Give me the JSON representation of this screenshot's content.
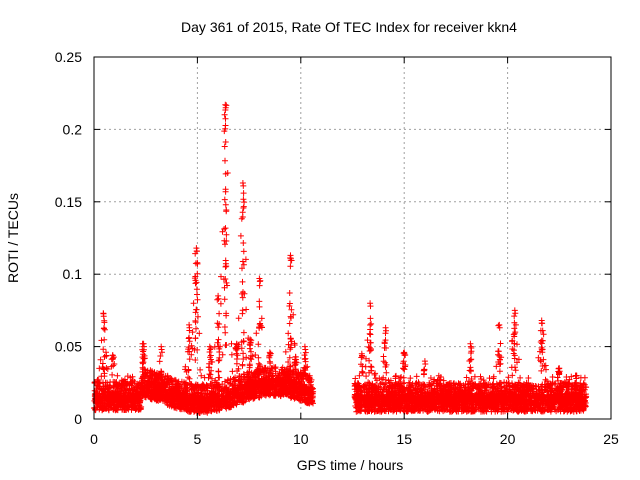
{
  "chart_data": {
    "type": "scatter",
    "title": "Day 361 of 2015, Rate Of TEC Index for receiver kkn4",
    "xlabel": "GPS time / hours",
    "ylabel": "ROTI / TECUs",
    "xlim": [
      0,
      25
    ],
    "ylim": [
      0,
      0.25
    ],
    "xticks": [
      0,
      5,
      10,
      15,
      20,
      25
    ],
    "xtick_labels": [
      "0",
      "5",
      "10",
      "15",
      "20",
      "25"
    ],
    "yticks": [
      0,
      0.05,
      0.1,
      0.15,
      0.2,
      0.25
    ],
    "ytick_labels": [
      "0",
      "0.05",
      "0.1",
      "0.15",
      "0.2",
      "0.25"
    ],
    "grid": true,
    "marker": "+",
    "series": [
      {
        "name": "ROTI",
        "color": "#ff0000",
        "data_gap_hours": [
          10.6,
          12.6
        ],
        "segments": [
          {
            "x_start": 0.0,
            "x_end": 10.6
          },
          {
            "x_start": 12.6,
            "x_end": 23.8
          }
        ],
        "peaks": [
          {
            "x": 0.45,
            "y": 0.073
          },
          {
            "x": 0.9,
            "y": 0.044
          },
          {
            "x": 2.4,
            "y": 0.052
          },
          {
            "x": 3.25,
            "y": 0.05
          },
          {
            "x": 4.6,
            "y": 0.065
          },
          {
            "x": 4.95,
            "y": 0.118
          },
          {
            "x": 5.6,
            "y": 0.05
          },
          {
            "x": 6.0,
            "y": 0.085
          },
          {
            "x": 6.35,
            "y": 0.217
          },
          {
            "x": 6.9,
            "y": 0.052
          },
          {
            "x": 7.2,
            "y": 0.163
          },
          {
            "x": 7.55,
            "y": 0.055
          },
          {
            "x": 8.0,
            "y": 0.097
          },
          {
            "x": 8.5,
            "y": 0.046
          },
          {
            "x": 9.5,
            "y": 0.113
          },
          {
            "x": 9.75,
            "y": 0.043
          },
          {
            "x": 10.2,
            "y": 0.05
          },
          {
            "x": 12.95,
            "y": 0.045
          },
          {
            "x": 13.35,
            "y": 0.08
          },
          {
            "x": 14.1,
            "y": 0.063
          },
          {
            "x": 15.0,
            "y": 0.046
          },
          {
            "x": 16.0,
            "y": 0.04
          },
          {
            "x": 18.2,
            "y": 0.052
          },
          {
            "x": 19.6,
            "y": 0.065
          },
          {
            "x": 20.35,
            "y": 0.075
          },
          {
            "x": 21.65,
            "y": 0.068
          },
          {
            "x": 22.5,
            "y": 0.035
          },
          {
            "x": 23.3,
            "y": 0.03
          }
        ]
      }
    ]
  }
}
